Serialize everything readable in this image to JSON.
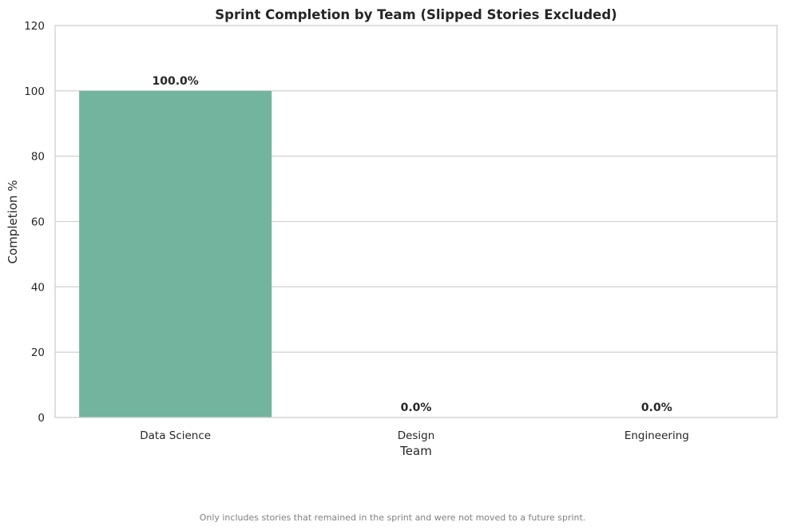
{
  "chart_data": {
    "type": "bar",
    "title": "Sprint Completion by Team (Slipped Stories Excluded)",
    "xlabel": "Team",
    "ylabel": "Completion %",
    "categories": [
      "Data Science",
      "Design",
      "Engineering"
    ],
    "values": [
      100.0,
      0.0,
      0.0
    ],
    "data_labels": [
      "100.0%",
      "0.0%",
      "0.0%"
    ],
    "ylim": [
      0,
      120
    ],
    "yticks": [
      0,
      20,
      40,
      60,
      80,
      100,
      120
    ],
    "grid": "horizontal",
    "bar_color": "#72b49e",
    "gridline_color": "#cccccc",
    "spine_color": "#cccccc",
    "footnote": "Only includes stories that remained in the sprint and were not moved to a future sprint."
  }
}
